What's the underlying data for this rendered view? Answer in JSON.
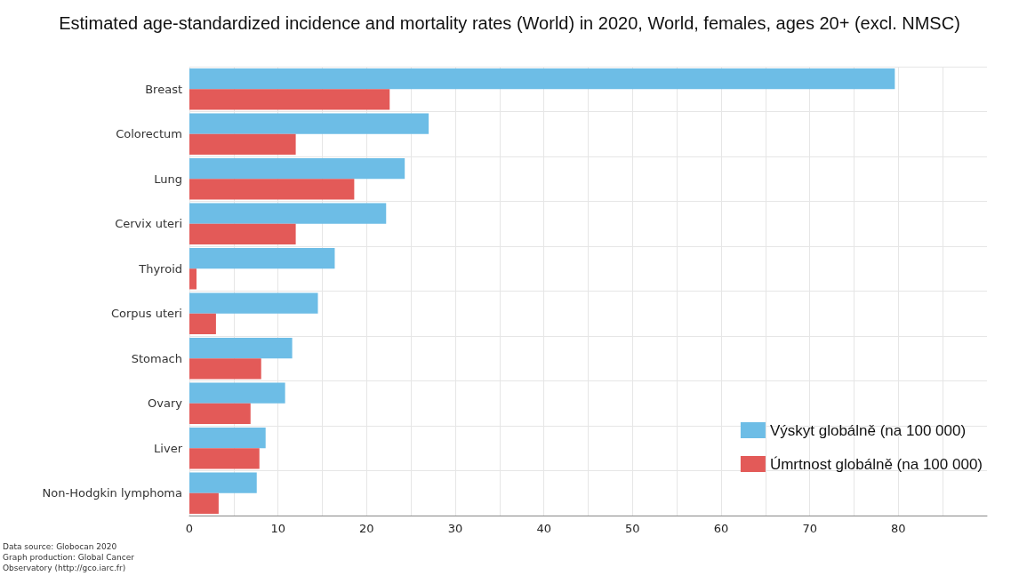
{
  "chart_data": {
    "type": "bar",
    "orientation": "horizontal",
    "title": "Estimated age-standardized incidence and mortality rates (World) in 2020, World, females, ages 20+ (excl. NMSC)",
    "categories": [
      "Breast",
      "Colorectum",
      "Lung",
      "Cervix uteri",
      "Thyroid",
      "Corpus uteri",
      "Stomach",
      "Ovary",
      "Liver",
      "Non-Hodgkin lymphoma"
    ],
    "series": [
      {
        "name": "Výskyt globálně (na 100 000)",
        "color": "#6dbde6",
        "values": [
          79.6,
          27.0,
          24.3,
          22.2,
          16.4,
          14.5,
          11.6,
          10.8,
          8.6,
          7.6
        ]
      },
      {
        "name": "Úmrtnost globálně (na 100 000)",
        "color": "#e35a58",
        "values": [
          22.6,
          12.0,
          18.6,
          12.0,
          0.8,
          3.0,
          8.1,
          6.9,
          7.9,
          3.3
        ]
      }
    ],
    "xlim": [
      0,
      90
    ],
    "xticks": [
      0,
      {
        "value": 5,
        "label": null
      },
      10,
      {
        "value": 15,
        "label": null
      },
      20,
      {
        "value": 25,
        "label": null
      },
      30,
      {
        "value": 35,
        "label": null
      },
      40,
      {
        "value": 45,
        "label": null
      },
      50,
      {
        "value": 55,
        "label": null
      },
      60,
      {
        "value": 65,
        "label": null
      },
      70,
      {
        "value": 75,
        "label": null
      },
      80,
      {
        "value": 85,
        "label": null
      }
    ],
    "grid": true,
    "legend": "bottom right",
    "annotations": [
      "Data source: Globocan 2020\nGraph production: Global Cancer\nObservatory (http://gco.iarc.fr)"
    ]
  }
}
